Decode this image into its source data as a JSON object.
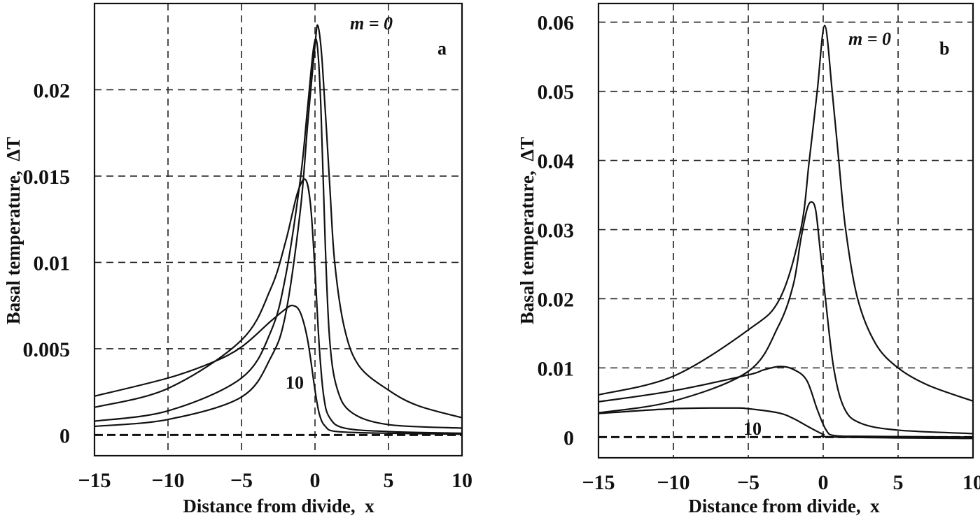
{
  "chart_data": [
    {
      "type": "line",
      "panel_label": "a",
      "xlabel": "Distance from divide,  x",
      "ylabel": "Basal temperature,  ΔT",
      "xlim": [
        -15,
        10
      ],
      "ylim": [
        -0.0012,
        0.025
      ],
      "xticks": [
        -15,
        -10,
        -5,
        0,
        5,
        10
      ],
      "xtick_labels": [
        "−15",
        "−10",
        "−5",
        "0",
        "5",
        "10"
      ],
      "yticks": [
        0,
        0.005,
        0.01,
        0.015,
        0.02
      ],
      "ytick_labels": [
        "0",
        "0.005",
        "0.01",
        "0.015",
        "0.02"
      ],
      "grid": true,
      "annotations": [
        {
          "text": "m = 0"
        },
        {
          "text": "10"
        }
      ],
      "series": [
        {
          "points": [
            [
              -15,
              0.0005
            ],
            [
              -10,
              0.0009
            ],
            [
              -5,
              0.0022
            ],
            [
              -3,
              0.0045
            ],
            [
              -2,
              0.007
            ],
            [
              -1,
              0.013
            ],
            [
              -0.5,
              0.018
            ],
            [
              0,
              0.0226
            ],
            [
              0.2,
              0.0237
            ],
            [
              0.5,
              0.0215
            ],
            [
              1,
              0.0145
            ],
            [
              1.34,
              0.01
            ],
            [
              2,
              0.0062
            ],
            [
              3,
              0.004
            ],
            [
              5,
              0.0026
            ],
            [
              7,
              0.0017
            ],
            [
              10,
              0.001
            ]
          ]
        },
        {
          "points": [
            [
              -15,
              0.0008
            ],
            [
              -10,
              0.0014
            ],
            [
              -5,
              0.0033
            ],
            [
              -3,
              0.006
            ],
            [
              -2,
              0.0092
            ],
            [
              -1,
              0.0148
            ],
            [
              -0.5,
              0.019
            ],
            [
              -0.1,
              0.0224
            ],
            [
              0.15,
              0.0226
            ],
            [
              0.4,
              0.019
            ],
            [
              0.7,
              0.011
            ],
            [
              1,
              0.0055
            ],
            [
              1.5,
              0.0027
            ],
            [
              2.5,
              0.0013
            ],
            [
              5,
              0.0006
            ],
            [
              10,
              0.0004
            ]
          ]
        },
        {
          "points": [
            [
              -15,
              0.0016
            ],
            [
              -10,
              0.0027
            ],
            [
              -5,
              0.0055
            ],
            [
              -3,
              0.0085
            ],
            [
              -2,
              0.0112
            ],
            [
              -1.2,
              0.014
            ],
            [
              -0.65,
              0.0148
            ],
            [
              -0.3,
              0.0133
            ],
            [
              0,
              0.0095
            ],
            [
              0.3,
              0.005
            ],
            [
              0.6,
              0.0022
            ],
            [
              1,
              0.001
            ],
            [
              2,
              0.0004
            ],
            [
              5,
              0.0002
            ],
            [
              10,
              0.0001
            ]
          ]
        },
        {
          "points": [
            [
              -15,
              0.00225
            ],
            [
              -10,
              0.0033
            ],
            [
              -7,
              0.0042
            ],
            [
              -5,
              0.0051
            ],
            [
              -3,
              0.0066
            ],
            [
              -2,
              0.0073
            ],
            [
              -1.5,
              0.0075
            ],
            [
              -1,
              0.0071
            ],
            [
              -0.5,
              0.0055
            ],
            [
              0,
              0.0026
            ],
            [
              0.3,
              0.0012
            ],
            [
              0.7,
              0.0005
            ],
            [
              1.5,
              0.0002
            ],
            [
              5,
              0.0001
            ],
            [
              10,
              5e-05
            ]
          ]
        }
      ]
    },
    {
      "type": "line",
      "panel_label": "b",
      "xlabel": "Distance from divide,  x",
      "ylabel": "Basal temperature,  ΔT",
      "xlim": [
        -15,
        10
      ],
      "ylim": [
        -0.003,
        0.0627
      ],
      "xticks": [
        -15,
        -10,
        -5,
        0,
        5,
        10
      ],
      "xtick_labels": [
        "−15",
        "−10",
        "−5",
        "0",
        "5",
        "10"
      ],
      "yticks": [
        0,
        0.01,
        0.02,
        0.03,
        0.04,
        0.05,
        0.06
      ],
      "ytick_labels": [
        "0",
        "0.01",
        "0.02",
        "0.03",
        "0.04",
        "0.05",
        "0.06"
      ],
      "grid": true,
      "annotations": [
        {
          "text": "m = 0"
        },
        {
          "text": "10"
        }
      ],
      "series": [
        {
          "points": [
            [
              -15,
              0.0061
            ],
            [
              -10,
              0.0088
            ],
            [
              -5,
              0.0155
            ],
            [
              -2.9,
              0.02
            ],
            [
              -1.5,
              0.03
            ],
            [
              -0.93,
              0.04
            ],
            [
              -0.4,
              0.05
            ],
            [
              0.1,
              0.0595
            ],
            [
              0.6,
              0.05
            ],
            [
              1.04,
              0.04
            ],
            [
              1.5,
              0.03
            ],
            [
              2.3,
              0.02
            ],
            [
              3.5,
              0.0135
            ],
            [
              5,
              0.01
            ],
            [
              7,
              0.0075
            ],
            [
              10,
              0.0052
            ]
          ]
        },
        {
          "points": [
            [
              -15,
              0.0035
            ],
            [
              -10,
              0.0052
            ],
            [
              -5,
              0.0095
            ],
            [
              -3,
              0.016
            ],
            [
              -2,
              0.022
            ],
            [
              -1.5,
              0.0285
            ],
            [
              -1.1,
              0.0328
            ],
            [
              -0.8,
              0.034
            ],
            [
              -0.5,
              0.0328
            ],
            [
              -0.2,
              0.027
            ],
            [
              0.15,
              0.02
            ],
            [
              0.7,
              0.01
            ],
            [
              1.4,
              0.0042
            ],
            [
              2.5,
              0.002
            ],
            [
              5,
              0.001
            ],
            [
              10,
              0.0005
            ]
          ]
        },
        {
          "points": [
            [
              -15,
              0.0051
            ],
            [
              -10,
              0.0067
            ],
            [
              -5,
              0.009
            ],
            [
              -4,
              0.0097
            ],
            [
              -2.9,
              0.0102
            ],
            [
              -2,
              0.0098
            ],
            [
              -1.1,
              0.0082
            ],
            [
              -0.4,
              0.004
            ],
            [
              0.2,
              0.001
            ],
            [
              0.8,
              0.0002
            ],
            [
              3,
              0.0001
            ],
            [
              10,
              0.0
            ]
          ]
        },
        {
          "points": [
            [
              -15,
              0.0034
            ],
            [
              -10,
              0.0041
            ],
            [
              -6,
              0.0042
            ],
            [
              -5,
              0.0041
            ],
            [
              -3,
              0.0035
            ],
            [
              -2,
              0.0027
            ],
            [
              -1,
              0.0015
            ],
            [
              0,
              0.0004
            ],
            [
              0.8,
              0.0
            ],
            [
              10,
              -0.0002
            ]
          ]
        }
      ]
    }
  ]
}
